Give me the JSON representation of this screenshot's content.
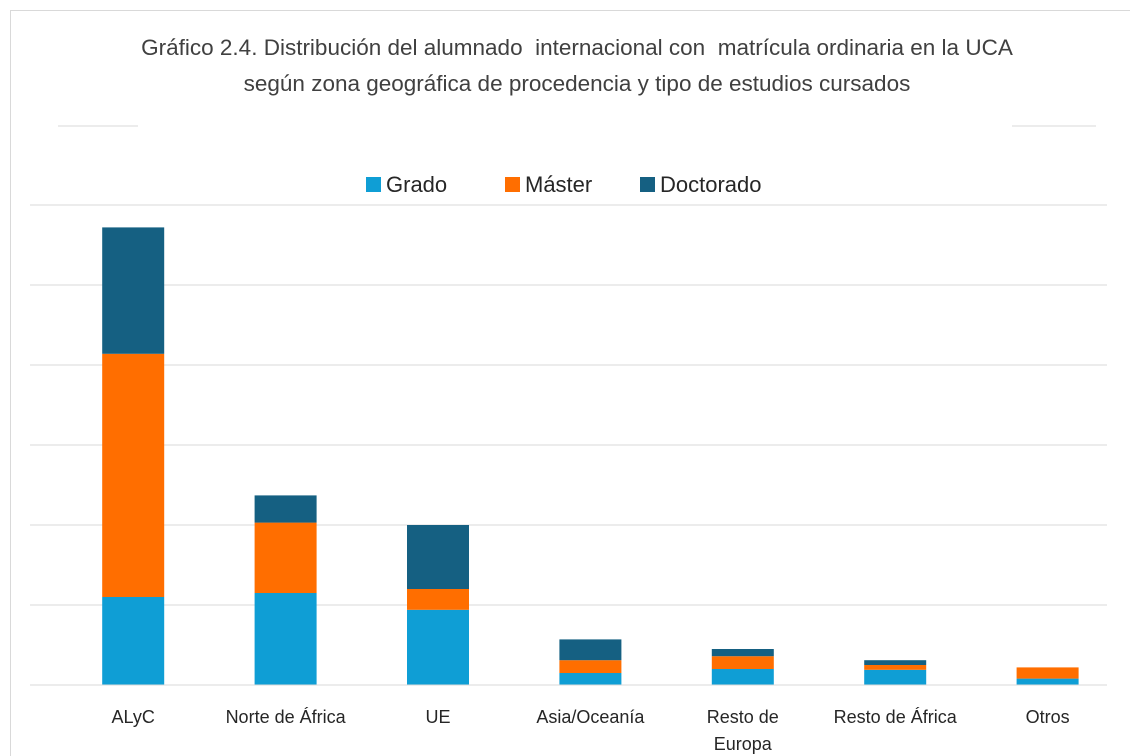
{
  "chart_data": {
    "type": "stacked_bar",
    "title": "Gráfico 2.4. Distribución del alumnado  internacional con  matrícula ordinaria en la UCA según zona geográfica de procedencia y tipo de estudios cursados",
    "categories": [
      "ALyC",
      "Norte de África",
      "UE",
      "Asia/Oceanía",
      "Resto de Europa",
      "Resto de África",
      "Otros"
    ],
    "series": [
      {
        "name": "Grado",
        "color": "#0f9ed5",
        "values": [
          110,
          115,
          94,
          15,
          20,
          19,
          8
        ]
      },
      {
        "name": "Máster",
        "color": "#ff6e00",
        "values": [
          304,
          88,
          26,
          16,
          16,
          6,
          14
        ]
      },
      {
        "name": "Doctorado",
        "color": "#156082",
        "values": [
          158,
          34,
          80,
          26,
          9,
          6,
          0
        ]
      }
    ],
    "ylim": [
      0,
      600
    ],
    "yticks": [
      0,
      100,
      200,
      300,
      400,
      500,
      600
    ],
    "grid": true
  }
}
